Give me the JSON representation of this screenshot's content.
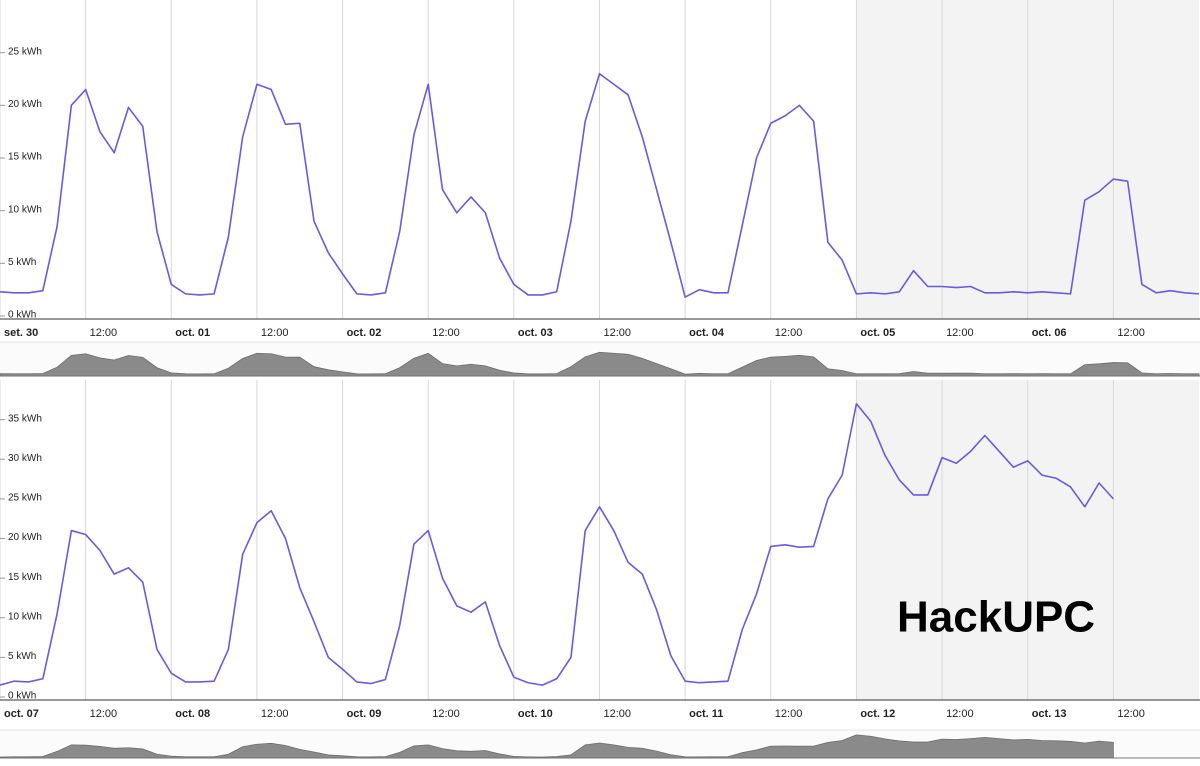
{
  "chart_data": [
    {
      "type": "line",
      "color": "#6a5ae0",
      "grid": true,
      "xlim": [
        0,
        168
      ],
      "ylim": [
        0,
        30
      ],
      "shaded_range": [
        120,
        168
      ],
      "yticks": [
        {
          "value": 0,
          "label": "0 kWh"
        },
        {
          "value": 5,
          "label": "5 kWh"
        },
        {
          "value": 10,
          "label": "10 kWh"
        },
        {
          "value": 15,
          "label": "15 kWh"
        },
        {
          "value": 20,
          "label": "20 kWh"
        },
        {
          "value": 25,
          "label": "25 kWh"
        }
      ],
      "xticks": [
        {
          "value": 0,
          "label": "set. 30"
        },
        {
          "value": 12,
          "label": "12:00"
        },
        {
          "value": 24,
          "label": "oct. 01"
        },
        {
          "value": 36,
          "label": "12:00"
        },
        {
          "value": 48,
          "label": "oct. 02"
        },
        {
          "value": 60,
          "label": "12:00"
        },
        {
          "value": 72,
          "label": "oct. 03"
        },
        {
          "value": 84,
          "label": "12:00"
        },
        {
          "value": 96,
          "label": "oct. 04"
        },
        {
          "value": 108,
          "label": "12:00"
        },
        {
          "value": 120,
          "label": "oct. 05"
        },
        {
          "value": 132,
          "label": "12:00"
        },
        {
          "value": 144,
          "label": "oct. 06"
        },
        {
          "value": 156,
          "label": "12:00"
        }
      ],
      "x": [
        0,
        2,
        4,
        6,
        8,
        10,
        12,
        14,
        16,
        18,
        20,
        22,
        24,
        26,
        28,
        30,
        32,
        34,
        36,
        38,
        40,
        42,
        44,
        46,
        48,
        50,
        52,
        54,
        56,
        58,
        60,
        62,
        64,
        66,
        68,
        70,
        72,
        74,
        76,
        78,
        80,
        82,
        84,
        86,
        88,
        90,
        92,
        94,
        96,
        98,
        100,
        102,
        104,
        106,
        108,
        110,
        112,
        114,
        116,
        118,
        120,
        122,
        124,
        126,
        128,
        130,
        132,
        134,
        136,
        138,
        140,
        142,
        144,
        146,
        148,
        150,
        152,
        154,
        156,
        158,
        160,
        162,
        164,
        166,
        168
      ],
      "values": [
        2.3,
        2.2,
        2.2,
        2.4,
        8.5,
        20,
        21.5,
        17.5,
        15.5,
        19.8,
        18,
        8,
        3,
        2.1,
        2.0,
        2.1,
        7.5,
        17,
        22,
        21.5,
        18.2,
        18.3,
        9,
        6,
        4,
        2.1,
        2.0,
        2.2,
        8,
        17.2,
        22,
        12,
        9.8,
        11.3,
        9.8,
        5.5,
        3,
        2.0,
        2.0,
        2.3,
        9,
        18.5,
        23,
        22,
        21,
        17,
        12,
        7,
        1.8,
        2.5,
        2.2,
        2.2,
        8.6,
        15,
        18.3,
        19,
        20,
        18.5,
        7,
        5.3,
        2.1,
        2.2,
        2.1,
        2.3,
        4.3,
        2.8,
        2.8,
        2.7,
        2.8,
        2.2,
        2.2,
        2.3,
        2.2,
        2.3,
        2.2,
        2.1,
        11,
        11.8,
        13,
        12.8,
        3,
        2.2,
        2.4,
        2.2,
        2.1
      ]
    },
    {
      "type": "line",
      "color": "#6a5ae0",
      "grid": true,
      "xlim": [
        0,
        168
      ],
      "ylim": [
        0,
        40
      ],
      "shaded_range": [
        120,
        168
      ],
      "annotation": "HackUPC",
      "yticks": [
        {
          "value": 0,
          "label": "0 kWh"
        },
        {
          "value": 5,
          "label": "5 kWh"
        },
        {
          "value": 10,
          "label": "10 kWh"
        },
        {
          "value": 15,
          "label": "15 kWh"
        },
        {
          "value": 20,
          "label": "20 kWh"
        },
        {
          "value": 25,
          "label": "25 kWh"
        },
        {
          "value": 30,
          "label": "30 kWh"
        },
        {
          "value": 35,
          "label": "35 kWh"
        }
      ],
      "xticks": [
        {
          "value": 0,
          "label": "oct. 07"
        },
        {
          "value": 12,
          "label": "12:00"
        },
        {
          "value": 24,
          "label": "oct. 08"
        },
        {
          "value": 36,
          "label": "12:00"
        },
        {
          "value": 48,
          "label": "oct. 09"
        },
        {
          "value": 60,
          "label": "12:00"
        },
        {
          "value": 72,
          "label": "oct. 10"
        },
        {
          "value": 84,
          "label": "12:00"
        },
        {
          "value": 96,
          "label": "oct. 11"
        },
        {
          "value": 108,
          "label": "12:00"
        },
        {
          "value": 120,
          "label": "oct. 12"
        },
        {
          "value": 132,
          "label": "12:00"
        },
        {
          "value": 144,
          "label": "oct. 13"
        },
        {
          "value": 156,
          "label": "12:00"
        }
      ],
      "x": [
        0,
        2,
        4,
        6,
        8,
        10,
        12,
        14,
        16,
        18,
        20,
        22,
        24,
        26,
        28,
        30,
        32,
        34,
        36,
        38,
        40,
        42,
        44,
        46,
        48,
        50,
        52,
        54,
        56,
        58,
        60,
        62,
        64,
        66,
        68,
        70,
        72,
        74,
        76,
        78,
        80,
        82,
        84,
        86,
        88,
        90,
        92,
        94,
        96,
        98,
        100,
        102,
        104,
        106,
        108,
        110,
        112,
        114,
        116,
        118,
        120,
        122,
        124,
        126,
        128,
        130,
        132,
        134,
        136,
        138,
        140,
        142,
        144,
        146,
        148,
        150,
        152,
        154,
        156
      ],
      "values": [
        1.5,
        2.0,
        1.9,
        2.3,
        10.5,
        21,
        20.5,
        18.5,
        15.5,
        16.3,
        14.5,
        6,
        3,
        1.9,
        1.9,
        2.0,
        6,
        18,
        22,
        23.5,
        20,
        13.8,
        9.5,
        5,
        3.5,
        1.9,
        1.7,
        2.2,
        9,
        19.3,
        21,
        15,
        11.5,
        10.7,
        12,
        6.5,
        2.5,
        1.8,
        1.5,
        2.3,
        5,
        21,
        24,
        21,
        17,
        15.5,
        11,
        5.2,
        2.0,
        1.8,
        1.9,
        2.0,
        8.5,
        13,
        19,
        19.2,
        18.9,
        19,
        25,
        28,
        37,
        34.8,
        30.5,
        27.4,
        25.5,
        25.5,
        30.2,
        29.5,
        31,
        33,
        31,
        29,
        29.8,
        28,
        27.6,
        26.5,
        24,
        27,
        25
      ]
    }
  ]
}
